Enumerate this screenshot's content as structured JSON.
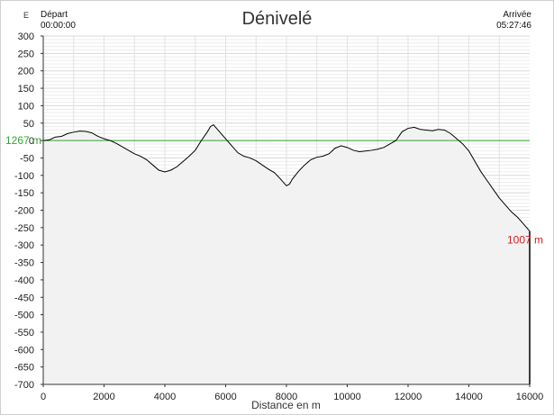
{
  "chart_data": {
    "type": "area",
    "title": "Dénivelé",
    "corner_label": "E",
    "start": {
      "label": "Départ",
      "time": "00:00:00"
    },
    "end": {
      "label": "Arrivée",
      "time": "05:27:46"
    },
    "xlabel": "Distance en m",
    "ylabel": "",
    "xlim": [
      0,
      16000
    ],
    "ylim": [
      -700,
      300
    ],
    "x_ticks": [
      0,
      2000,
      4000,
      6000,
      8000,
      10000,
      12000,
      14000,
      16000
    ],
    "y_ticks": [
      300,
      250,
      200,
      150,
      100,
      50,
      0,
      -50,
      -100,
      -150,
      -200,
      -250,
      -300,
      -350,
      -400,
      -450,
      -500,
      -550,
      -600,
      -650,
      -700
    ],
    "grid": true,
    "reference_line": {
      "y": 0,
      "label": "1267 m",
      "color": "#33a333"
    },
    "end_marker": {
      "label": "1007 m",
      "color": "#d42020"
    },
    "fill_color": "#f2f2f2",
    "line_color": "#000000",
    "series": [
      {
        "x": [
          0,
          200,
          400,
          600,
          800,
          1000,
          1200,
          1400,
          1600,
          1800,
          2000,
          2200,
          2400,
          2600,
          2800,
          3000,
          3200,
          3400,
          3600,
          3800,
          4000,
          4200,
          4400,
          4600,
          4800,
          5000,
          5200,
          5400,
          5500,
          5600,
          5700,
          5800,
          6000,
          6200,
          6400,
          6600,
          6800,
          7000,
          7200,
          7400,
          7600,
          7800,
          8000,
          8100,
          8200,
          8400,
          8600,
          8800,
          9000,
          9200,
          9400,
          9600,
          9800,
          10000,
          10200,
          10400,
          10600,
          10800,
          11000,
          11200,
          11400,
          11600,
          11800,
          12000,
          12200,
          12400,
          12600,
          12800,
          13000,
          13200,
          13400,
          13600,
          13800,
          14000,
          14200,
          14400,
          14600,
          14800,
          15000,
          15200,
          15400,
          15600,
          15800,
          16000
        ],
        "y": [
          0,
          2,
          10,
          12,
          20,
          24,
          27,
          26,
          22,
          12,
          5,
          0,
          -8,
          -18,
          -28,
          -38,
          -45,
          -55,
          -70,
          -85,
          -90,
          -85,
          -75,
          -60,
          -45,
          -28,
          0,
          25,
          40,
          45,
          35,
          25,
          5,
          -15,
          -35,
          -45,
          -50,
          -58,
          -70,
          -82,
          -92,
          -110,
          -130,
          -125,
          -110,
          -88,
          -70,
          -55,
          -48,
          -45,
          -38,
          -22,
          -15,
          -20,
          -28,
          -32,
          -30,
          -28,
          -25,
          -20,
          -10,
          0,
          25,
          35,
          38,
          32,
          30,
          28,
          32,
          30,
          20,
          5,
          -10,
          -30,
          -60,
          -90,
          -115,
          -140,
          -165,
          -185,
          -205,
          -220,
          -240,
          -260
        ]
      }
    ]
  }
}
